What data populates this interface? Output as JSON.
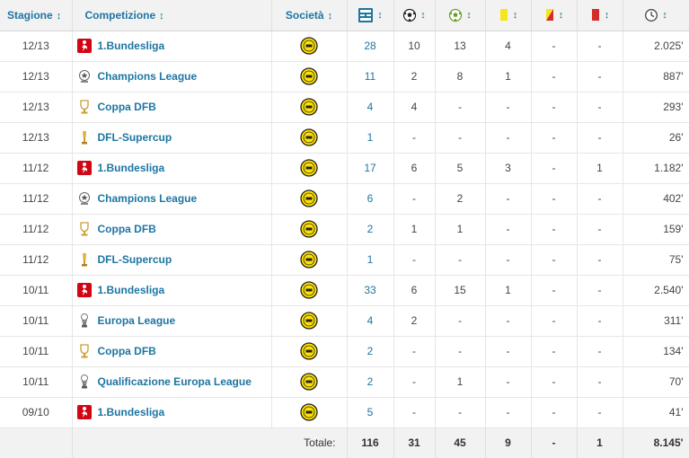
{
  "header": {
    "season": "Stagione",
    "competition": "Competizione",
    "club": "Società",
    "sort_symbol": "↕",
    "icons": {
      "apps": "lineup-icon",
      "goals": "ball-icon",
      "assists": "assist-icon",
      "yellow": "yellow-card-icon",
      "yellow_red": "yellow-red-card-icon",
      "red": "red-card-icon",
      "minutes": "clock-icon"
    }
  },
  "colors": {
    "link": "#1d75a3",
    "bundesliga_red": "#d20515",
    "bvb_yellow": "#fde100",
    "yellow_card": "#f5e61b",
    "red_card": "#d42b2b"
  },
  "rows": [
    {
      "season": "12/13",
      "comp": "1.Bundesliga",
      "icon": "bundesliga",
      "apps": "28",
      "goals": "10",
      "assists": "13",
      "yellow": "4",
      "yr": "-",
      "red": "-",
      "minutes": "2.025'"
    },
    {
      "season": "12/13",
      "comp": "Champions League",
      "icon": "champions",
      "apps": "11",
      "goals": "2",
      "assists": "8",
      "yellow": "1",
      "yr": "-",
      "red": "-",
      "minutes": "887'"
    },
    {
      "season": "12/13",
      "comp": "Coppa DFB",
      "icon": "dfbpokal",
      "apps": "4",
      "goals": "4",
      "assists": "-",
      "yellow": "-",
      "yr": "-",
      "red": "-",
      "minutes": "293'"
    },
    {
      "season": "12/13",
      "comp": "DFL-Supercup",
      "icon": "supercup",
      "apps": "1",
      "goals": "-",
      "assists": "-",
      "yellow": "-",
      "yr": "-",
      "red": "-",
      "minutes": "26'"
    },
    {
      "season": "11/12",
      "comp": "1.Bundesliga",
      "icon": "bundesliga",
      "apps": "17",
      "goals": "6",
      "assists": "5",
      "yellow": "3",
      "yr": "-",
      "red": "1",
      "minutes": "1.182'"
    },
    {
      "season": "11/12",
      "comp": "Champions League",
      "icon": "champions",
      "apps": "6",
      "goals": "-",
      "assists": "2",
      "yellow": "-",
      "yr": "-",
      "red": "-",
      "minutes": "402'"
    },
    {
      "season": "11/12",
      "comp": "Coppa DFB",
      "icon": "dfbpokal",
      "apps": "2",
      "goals": "1",
      "assists": "1",
      "yellow": "-",
      "yr": "-",
      "red": "-",
      "minutes": "159'"
    },
    {
      "season": "11/12",
      "comp": "DFL-Supercup",
      "icon": "supercup",
      "apps": "1",
      "goals": "-",
      "assists": "-",
      "yellow": "-",
      "yr": "-",
      "red": "-",
      "minutes": "75'"
    },
    {
      "season": "10/11",
      "comp": "1.Bundesliga",
      "icon": "bundesliga",
      "apps": "33",
      "goals": "6",
      "assists": "15",
      "yellow": "1",
      "yr": "-",
      "red": "-",
      "minutes": "2.540'"
    },
    {
      "season": "10/11",
      "comp": "Europa League",
      "icon": "europa",
      "apps": "4",
      "goals": "2",
      "assists": "-",
      "yellow": "-",
      "yr": "-",
      "red": "-",
      "minutes": "311'"
    },
    {
      "season": "10/11",
      "comp": "Coppa DFB",
      "icon": "dfbpokal",
      "apps": "2",
      "goals": "-",
      "assists": "-",
      "yellow": "-",
      "yr": "-",
      "red": "-",
      "minutes": "134'"
    },
    {
      "season": "10/11",
      "comp": "Qualificazione Europa League",
      "icon": "europa",
      "apps": "2",
      "goals": "-",
      "assists": "1",
      "yellow": "-",
      "yr": "-",
      "red": "-",
      "minutes": "70'"
    },
    {
      "season": "09/10",
      "comp": "1.Bundesliga",
      "icon": "bundesliga",
      "apps": "5",
      "goals": "-",
      "assists": "-",
      "yellow": "-",
      "yr": "-",
      "red": "-",
      "minutes": "41'"
    }
  ],
  "totals": {
    "label": "Totale:",
    "apps": "116",
    "goals": "31",
    "assists": "45",
    "yellow": "9",
    "yr": "-",
    "red": "1",
    "minutes": "8.145'"
  }
}
